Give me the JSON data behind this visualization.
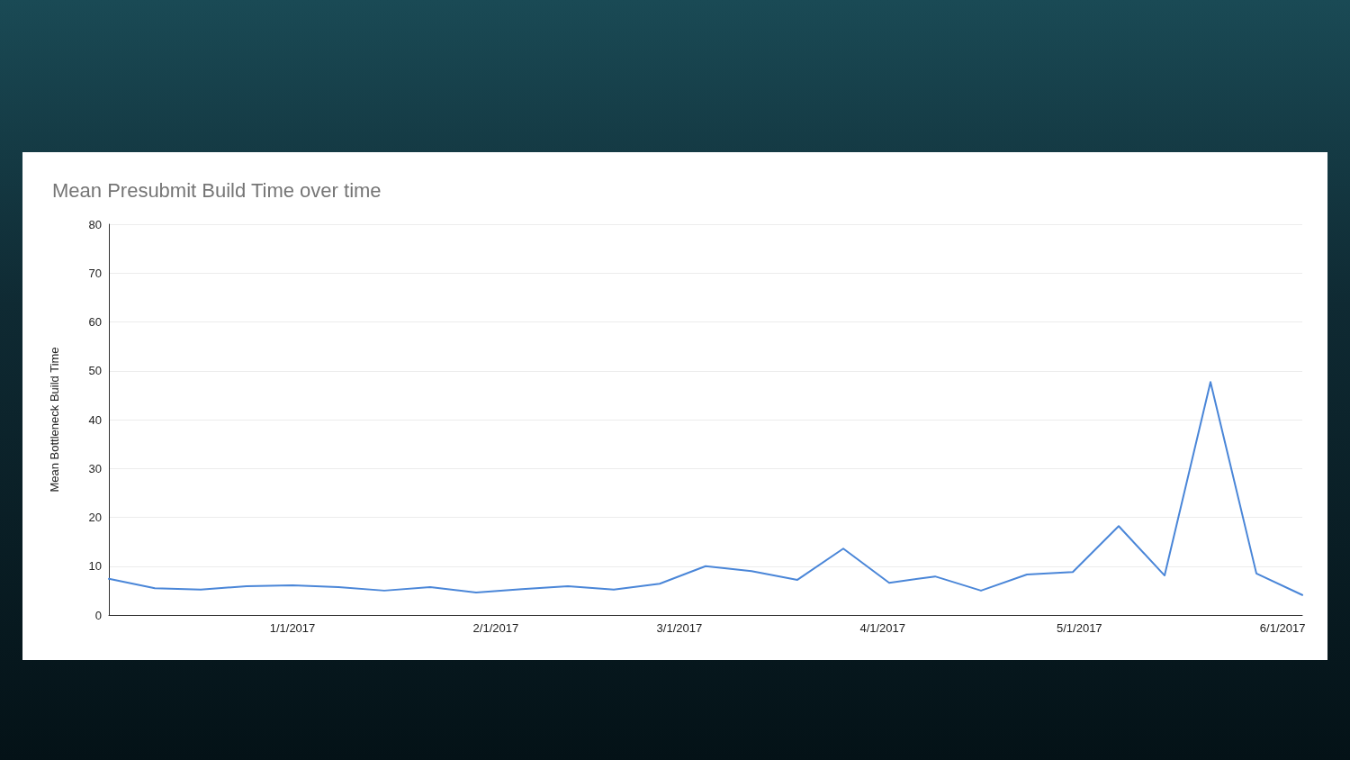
{
  "chart_data": {
    "type": "line",
    "title": "Mean Presubmit Build Time over time",
    "ylabel": "Mean Bottleneck Build Time",
    "x": [
      "2016-12-04",
      "2016-12-11",
      "2016-12-18",
      "2016-12-25",
      "2017-01-01",
      "2017-01-08",
      "2017-01-15",
      "2017-01-22",
      "2017-01-29",
      "2017-02-05",
      "2017-02-12",
      "2017-02-19",
      "2017-02-26",
      "2017-03-05",
      "2017-03-12",
      "2017-03-19",
      "2017-03-26",
      "2017-04-02",
      "2017-04-09",
      "2017-04-16",
      "2017-04-23",
      "2017-04-30",
      "2017-05-07",
      "2017-05-14",
      "2017-05-21",
      "2017-05-28",
      "2017-06-04"
    ],
    "series": [
      {
        "color": "#4a86d8",
        "values": [
          7.4,
          5.5,
          5.2,
          5.9,
          6.1,
          5.7,
          5.0,
          5.7,
          4.6,
          5.3,
          5.9,
          5.2,
          6.4,
          10.0,
          9.0,
          7.2,
          13.6,
          6.6,
          7.9,
          5.0,
          8.3,
          8.8,
          18.2,
          8.1,
          47.7,
          8.5,
          4.1
        ]
      }
    ],
    "xlim": [
      "2016-12-04",
      "2017-06-04"
    ],
    "xticks": [
      {
        "value": "2017-01-01",
        "label": "1/1/2017"
      },
      {
        "value": "2017-02-01",
        "label": "2/1/2017"
      },
      {
        "value": "2017-03-01",
        "label": "3/1/2017"
      },
      {
        "value": "2017-04-01",
        "label": "4/1/2017"
      },
      {
        "value": "2017-05-01",
        "label": "5/1/2017"
      },
      {
        "value": "2017-06-01",
        "label": "6/1/2017"
      }
    ],
    "ylim": [
      0,
      80
    ],
    "yticks": [
      0,
      10,
      20,
      30,
      40,
      50,
      60,
      70,
      80
    ],
    "grid": "y",
    "marker": "none",
    "line_style": "solid"
  }
}
